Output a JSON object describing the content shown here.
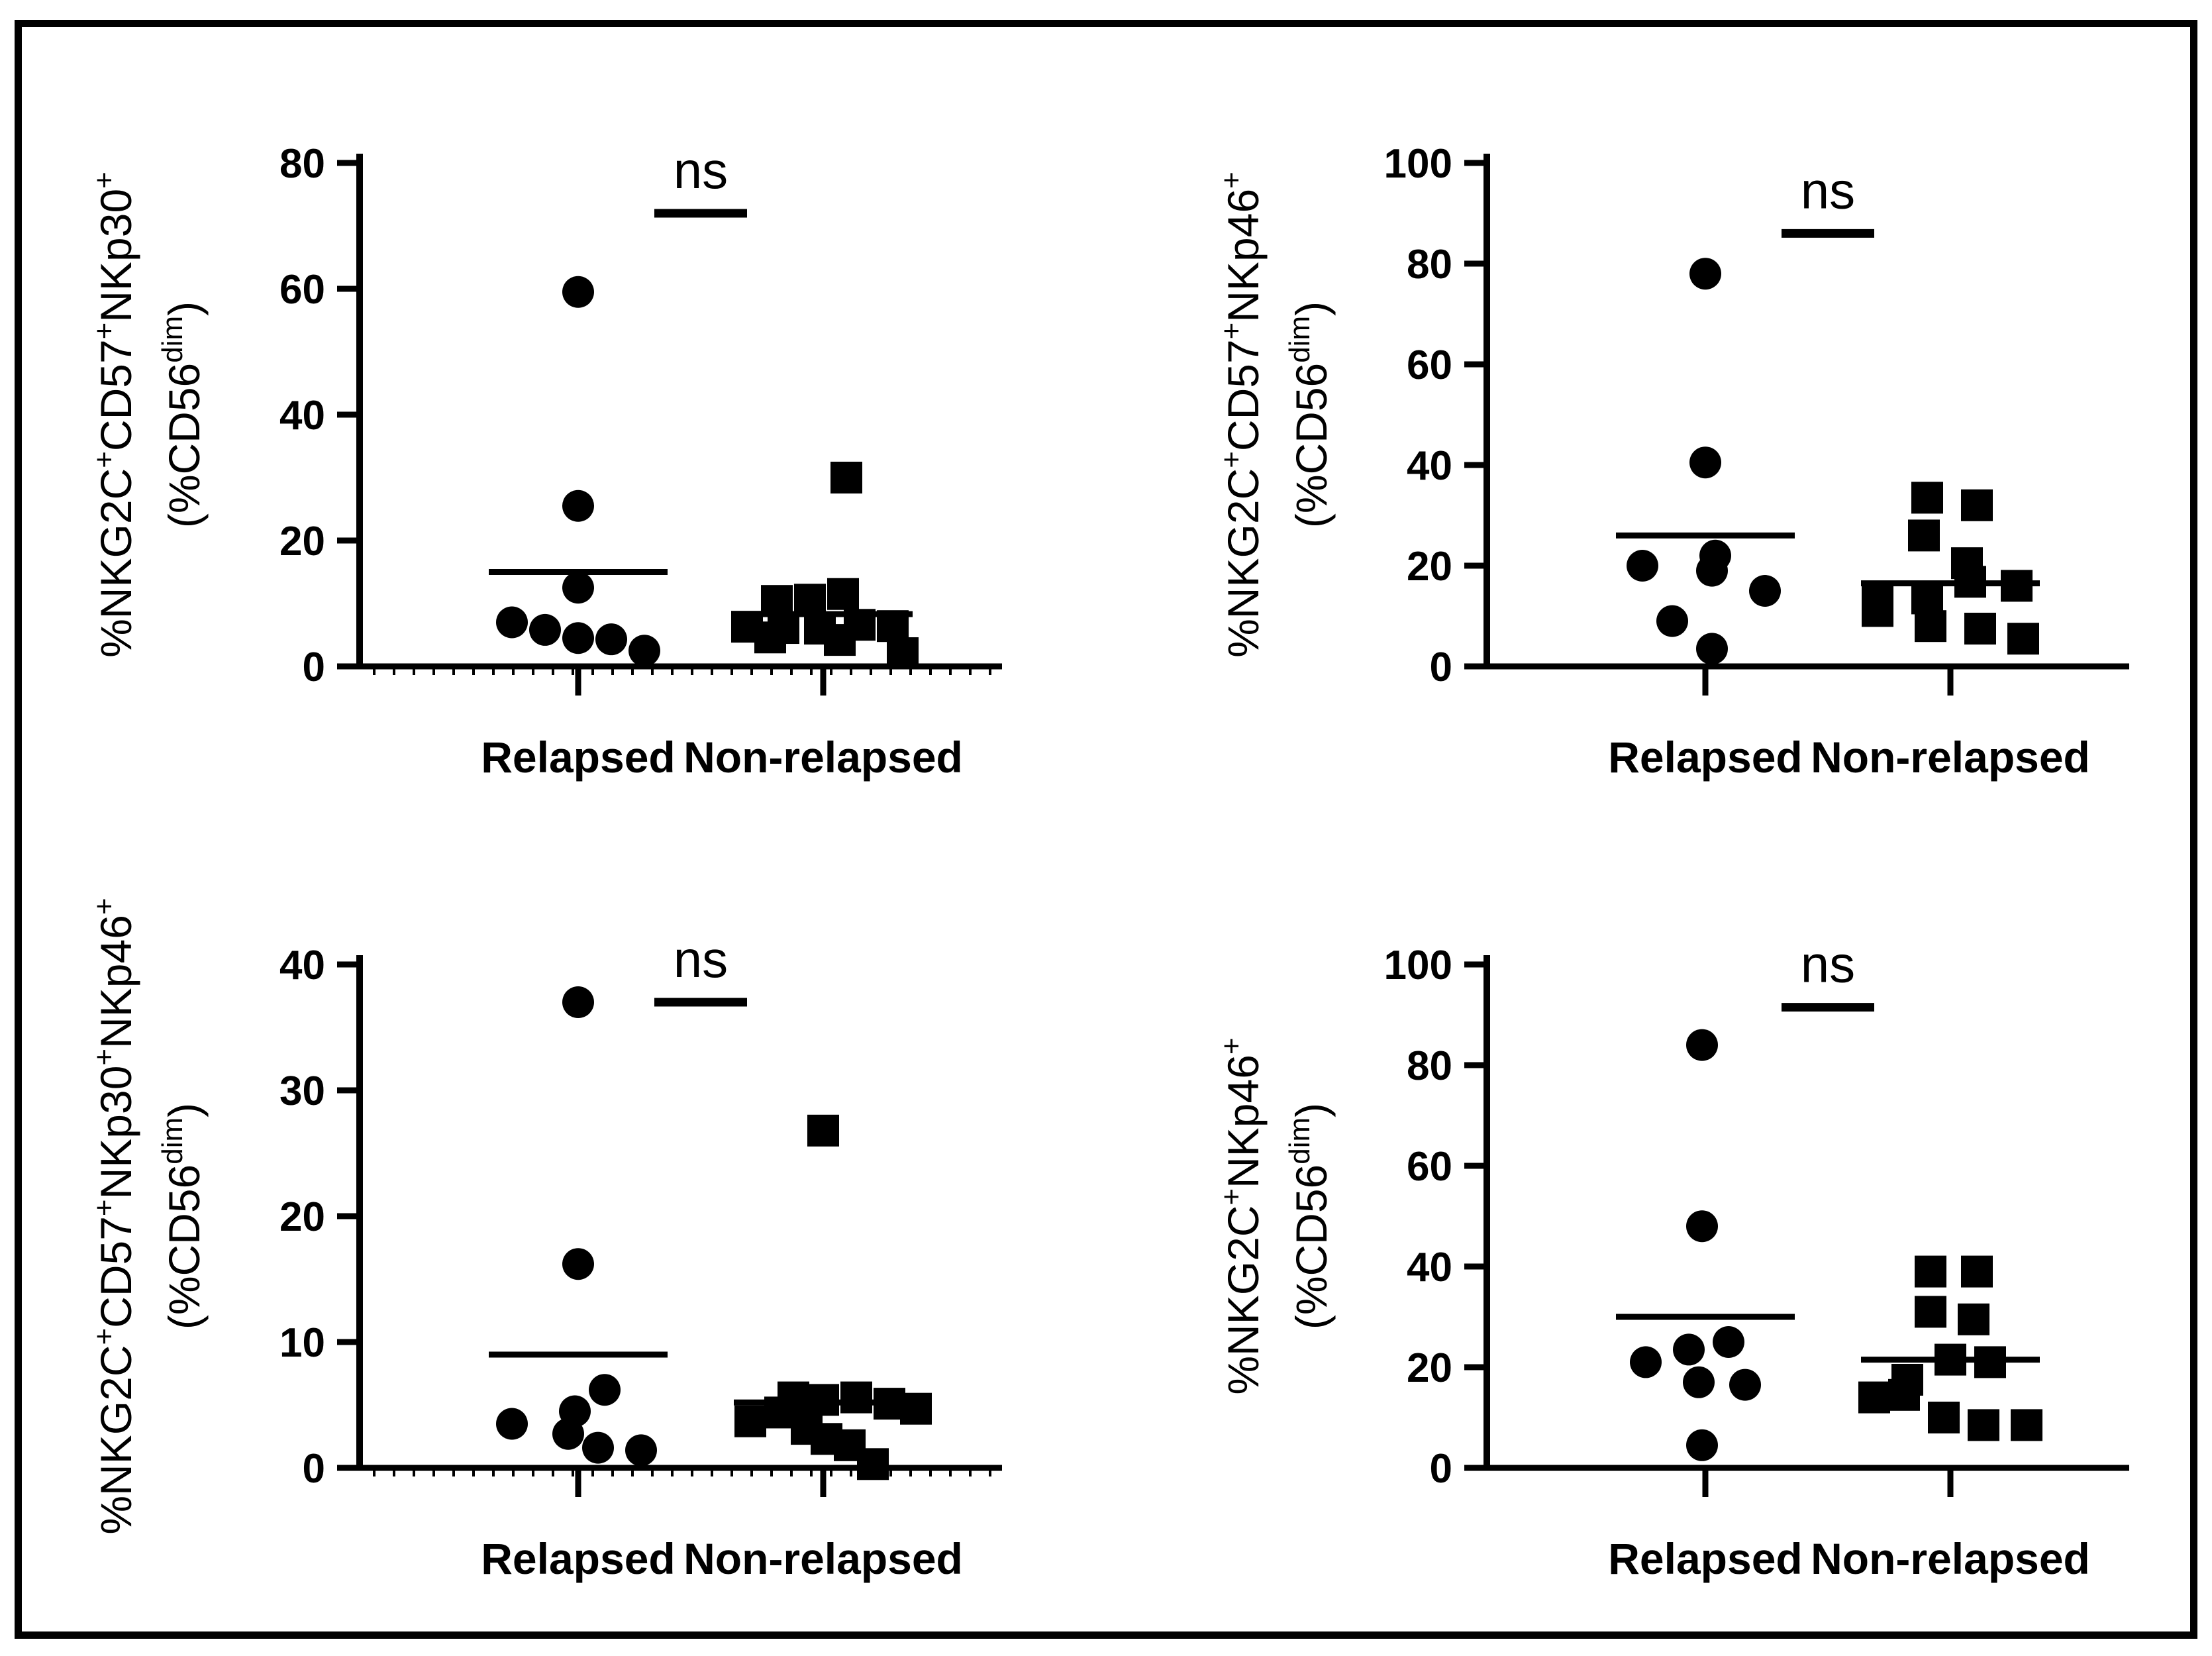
{
  "colors": {
    "ink": "#000000",
    "background": "#ffffff"
  },
  "figure": {
    "border": "black-rectangle-frame"
  },
  "chart_data": [
    {
      "id": "top-left",
      "type": "scatter",
      "ylabel_text": "%NKG2C+CD57+NKp30+ (%CD56dim)",
      "ylabel": {
        "line1": [
          {
            "t": "%NKG2C"
          },
          {
            "t": "+",
            "sup": true
          },
          {
            "t": "CD57"
          },
          {
            "t": "+",
            "sup": true
          },
          {
            "t": "NKp30"
          },
          {
            "t": "+",
            "sup": true
          }
        ],
        "line2": [
          {
            "t": "(%CD56"
          },
          {
            "t": "dim",
            "sup": true
          },
          {
            "t": ")"
          }
        ]
      },
      "ylim": [
        0,
        80
      ],
      "yticks": [
        0,
        20,
        40,
        60,
        80
      ],
      "categories": [
        "Relapsed",
        "Non-relapsed"
      ],
      "significance": "ns",
      "ns_y": 72,
      "x_minor_ticks": true,
      "series": [
        {
          "name": "Relapsed",
          "marker": "circle",
          "mean": 15,
          "values": [
            59.5,
            25.5,
            12.5,
            7,
            5.8,
            4.5,
            4.3,
            2.5
          ],
          "jitter_dx": [
            0,
            0,
            0,
            -100,
            -50,
            0,
            50,
            100
          ]
        },
        {
          "name": "Non-relapsed",
          "marker": "square",
          "mean": 8.3,
          "values": [
            30,
            11.5,
            10.6,
            10.4,
            6.6,
            6.4,
            6.3,
            6.1,
            6.0,
            4.6,
            4.2,
            2.1
          ],
          "jitter_dx": [
            35,
            30,
            -20,
            -70,
            55,
            105,
            -115,
            -60,
            -5,
            -80,
            25,
            120
          ]
        }
      ]
    },
    {
      "id": "top-right",
      "type": "scatter",
      "ylabel_text": "%NKG2C+CD57+NKp46+ (%CD56dim)",
      "ylabel": {
        "line1": [
          {
            "t": "%NKG2C"
          },
          {
            "t": "+",
            "sup": true
          },
          {
            "t": "CD57"
          },
          {
            "t": "+",
            "sup": true
          },
          {
            "t": "NKp46"
          },
          {
            "t": "+",
            "sup": true
          }
        ],
        "line2": [
          {
            "t": "(%CD56"
          },
          {
            "t": "dim",
            "sup": true
          },
          {
            "t": ")"
          }
        ]
      },
      "ylim": [
        0,
        100
      ],
      "yticks": [
        0,
        20,
        40,
        60,
        80,
        100
      ],
      "categories": [
        "Relapsed",
        "Non-relapsed"
      ],
      "significance": "ns",
      "ns_y": 86,
      "x_minor_ticks": false,
      "series": [
        {
          "name": "Relapsed",
          "marker": "circle",
          "mean": 26,
          "values": [
            78,
            40.5,
            22,
            20,
            19,
            15,
            9,
            3.5
          ],
          "jitter_dx": [
            0,
            0,
            15,
            -95,
            10,
            90,
            -50,
            10
          ]
        },
        {
          "name": "Non-relapsed",
          "marker": "square",
          "mean": 16.5,
          "values": [
            33.5,
            32,
            26,
            20.5,
            16.8,
            16,
            13.5,
            13,
            11,
            8,
            7.5,
            5.5
          ],
          "jitter_dx": [
            -35,
            40,
            -40,
            25,
            30,
            100,
            -35,
            -110,
            -110,
            -30,
            45,
            110
          ]
        }
      ]
    },
    {
      "id": "bottom-left",
      "type": "scatter",
      "ylabel_text": "%NKG2C+CD57+NKp30+NKp46+ (%CD56dim)",
      "ylabel": {
        "line1": [
          {
            "t": "%NKG2C"
          },
          {
            "t": "+",
            "sup": true
          },
          {
            "t": "CD57"
          },
          {
            "t": "+",
            "sup": true
          },
          {
            "t": "NKp30"
          },
          {
            "t": "+",
            "sup": true
          },
          {
            "t": "NKp46"
          },
          {
            "t": "+",
            "sup": true
          }
        ],
        "line2": [
          {
            "t": "(%CD56"
          },
          {
            "t": "dim",
            "sup": true
          },
          {
            "t": ")"
          }
        ]
      },
      "ylim": [
        0,
        40
      ],
      "yticks": [
        0,
        10,
        20,
        30,
        40
      ],
      "categories": [
        "Relapsed",
        "Non-relapsed"
      ],
      "significance": "ns",
      "ns_y": 37,
      "x_minor_ticks": true,
      "series": [
        {
          "name": "Relapsed",
          "marker": "circle",
          "mean": 9,
          "values": [
            37,
            16.2,
            6.2,
            4.5,
            3.5,
            2.7,
            1.6,
            1.4
          ],
          "jitter_dx": [
            0,
            0,
            40,
            -5,
            -100,
            -15,
            30,
            95
          ]
        },
        {
          "name": "Non-relapsed",
          "marker": "square",
          "mean": 5.2,
          "values": [
            26.8,
            5.6,
            5.6,
            5.4,
            5.1,
            4.7,
            4.4,
            3.7,
            3.1,
            2.3,
            1.8,
            0.3
          ],
          "jitter_dx": [
            0,
            -45,
            50,
            0,
            100,
            140,
            -65,
            -110,
            -25,
            5,
            40,
            75
          ]
        }
      ]
    },
    {
      "id": "bottom-right",
      "type": "scatter",
      "ylabel_text": "%NKG2C+NKp46+ (%CD56dim)",
      "ylabel": {
        "line1": [
          {
            "t": "%NKG2C"
          },
          {
            "t": "+",
            "sup": true
          },
          {
            "t": "NKp46"
          },
          {
            "t": "+",
            "sup": true
          }
        ],
        "line2": [
          {
            "t": "(%CD56"
          },
          {
            "t": "dim",
            "sup": true
          },
          {
            "t": ")"
          }
        ]
      },
      "ylim": [
        0,
        100
      ],
      "yticks": [
        0,
        20,
        40,
        60,
        80,
        100
      ],
      "categories": [
        "Relapsed",
        "Non-relapsed"
      ],
      "significance": "ns",
      "ns_y": 91.5,
      "x_minor_ticks": false,
      "series": [
        {
          "name": "Relapsed",
          "marker": "circle",
          "mean": 30,
          "values": [
            84,
            48,
            25,
            23.5,
            21,
            17,
            16.5,
            4.5
          ],
          "jitter_dx": [
            -5,
            -5,
            35,
            -25,
            -90,
            -10,
            60,
            -5
          ]
        },
        {
          "name": "Non-relapsed",
          "marker": "square",
          "mean": 21.5,
          "values": [
            39,
            39,
            31,
            29.5,
            21.5,
            21,
            17.5,
            14.5,
            14,
            10,
            8.5,
            8.5
          ],
          "jitter_dx": [
            -30,
            40,
            -30,
            35,
            0,
            60,
            -65,
            -70,
            -115,
            -10,
            50,
            115
          ]
        }
      ]
    }
  ]
}
